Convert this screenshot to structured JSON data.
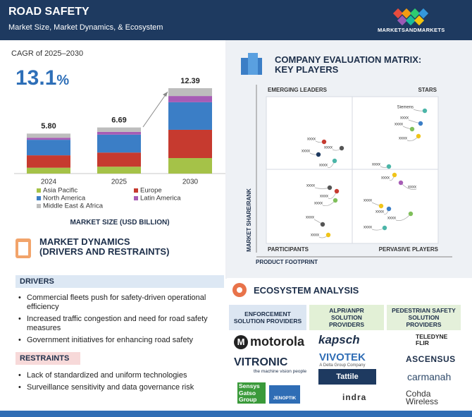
{
  "header": {
    "title": "ROAD SAFETY",
    "subtitle": "Market Size, Market Dynamics, & Ecosystem",
    "brand": "MARKETSANDMARKETS"
  },
  "cagr": {
    "label": "CAGR of 2025–2030",
    "value": "13.1",
    "unit": "%"
  },
  "chart_data": {
    "type": "bar",
    "stacked": true,
    "x_label": "MARKET SIZE (USD BILLION)",
    "categories": [
      "2024",
      "2025",
      "2030"
    ],
    "series": [
      {
        "name": "Asia Pacific",
        "color": "#a5c248",
        "values": [
          0.85,
          1.0,
          2.25
        ]
      },
      {
        "name": "Europe",
        "color": "#c63a2f",
        "values": [
          1.8,
          2.05,
          4.1
        ]
      },
      {
        "name": "North America",
        "color": "#3b7ec6",
        "values": [
          2.25,
          2.6,
          4.0
        ]
      },
      {
        "name": "Latin America",
        "color": "#a65cb5",
        "values": [
          0.3,
          0.4,
          0.9
        ]
      },
      {
        "name": "Middle East & Africa",
        "color": "#bdbdbd",
        "values": [
          0.6,
          0.64,
          1.14
        ]
      }
    ],
    "totals": [
      5.8,
      6.69,
      12.39
    ],
    "totals_labels": [
      "5.80",
      "6.69",
      "12.39"
    ]
  },
  "market_dynamics": {
    "title_lines": [
      "MARKET DYNAMICS",
      "(DRIVERS AND RESTRAINTS)"
    ],
    "drivers": {
      "heading": "DRIVERS",
      "items": [
        "Commercial fleets push for safety-driven operational efficiency",
        "Increased traffic congestion and need for road safety measures",
        "Government initiatives for enhancing road safety"
      ]
    },
    "restraints": {
      "heading": "RESTRAINTS",
      "items": [
        "Lack of standardized and uniform technologies",
        "Surveillance sensitivity and data governance risk"
      ]
    }
  },
  "matrix": {
    "title_lines": [
      "COMPANY EVALUATION MATRIX:",
      "KEY PLAYERS"
    ],
    "quadrants": [
      "EMERGING LEADERS",
      "STARS",
      "PARTICIPANTS",
      "PERVASIVE PLAYERS"
    ],
    "y_label": "MARKET SHARE/RANK",
    "x_label": "PRODUCT FOOTPRINT",
    "players": [
      "Siemens",
      "xxxx",
      "xxxx",
      "xxxx",
      "xxxx",
      "xxxx",
      "xxxx",
      "xxxx",
      "xxxx",
      "xxxx",
      "xxxx",
      "xxxx",
      "xxxx",
      "xxxx",
      "xxxx",
      "xxxx",
      "xxxx",
      "xxxx",
      "xxxx",
      "xxxx"
    ]
  },
  "ecosystem": {
    "title": "ECOSYSTEM ANALYSIS",
    "columns": [
      {
        "heading": "ENFORCEMENT SOLUTION PROVIDERS",
        "companies": [
          {
            "name": "motorola"
          },
          {
            "name": "VITRONIC",
            "tagline": "the machine vision people"
          },
          {
            "name": "Sensys Gatso Group"
          },
          {
            "name": "JENOPTIK"
          }
        ]
      },
      {
        "heading": "ALPR/ANPR SOLUTION PROVIDERS",
        "companies": [
          {
            "name": "kapsch"
          },
          {
            "name": "VIVOTEK",
            "tagline": "A Delta Group Company"
          },
          {
            "name": "Tattile"
          },
          {
            "name": "indra"
          }
        ]
      },
      {
        "heading": "PEDESTRIAN SAFETY SOLUTION PROVIDERS",
        "companies": [
          {
            "name": "TELEDYNE FLIR"
          },
          {
            "name": "ASCENSUS"
          },
          {
            "name": "carmanah"
          },
          {
            "name": "Cohda Wireless"
          }
        ]
      }
    ]
  }
}
